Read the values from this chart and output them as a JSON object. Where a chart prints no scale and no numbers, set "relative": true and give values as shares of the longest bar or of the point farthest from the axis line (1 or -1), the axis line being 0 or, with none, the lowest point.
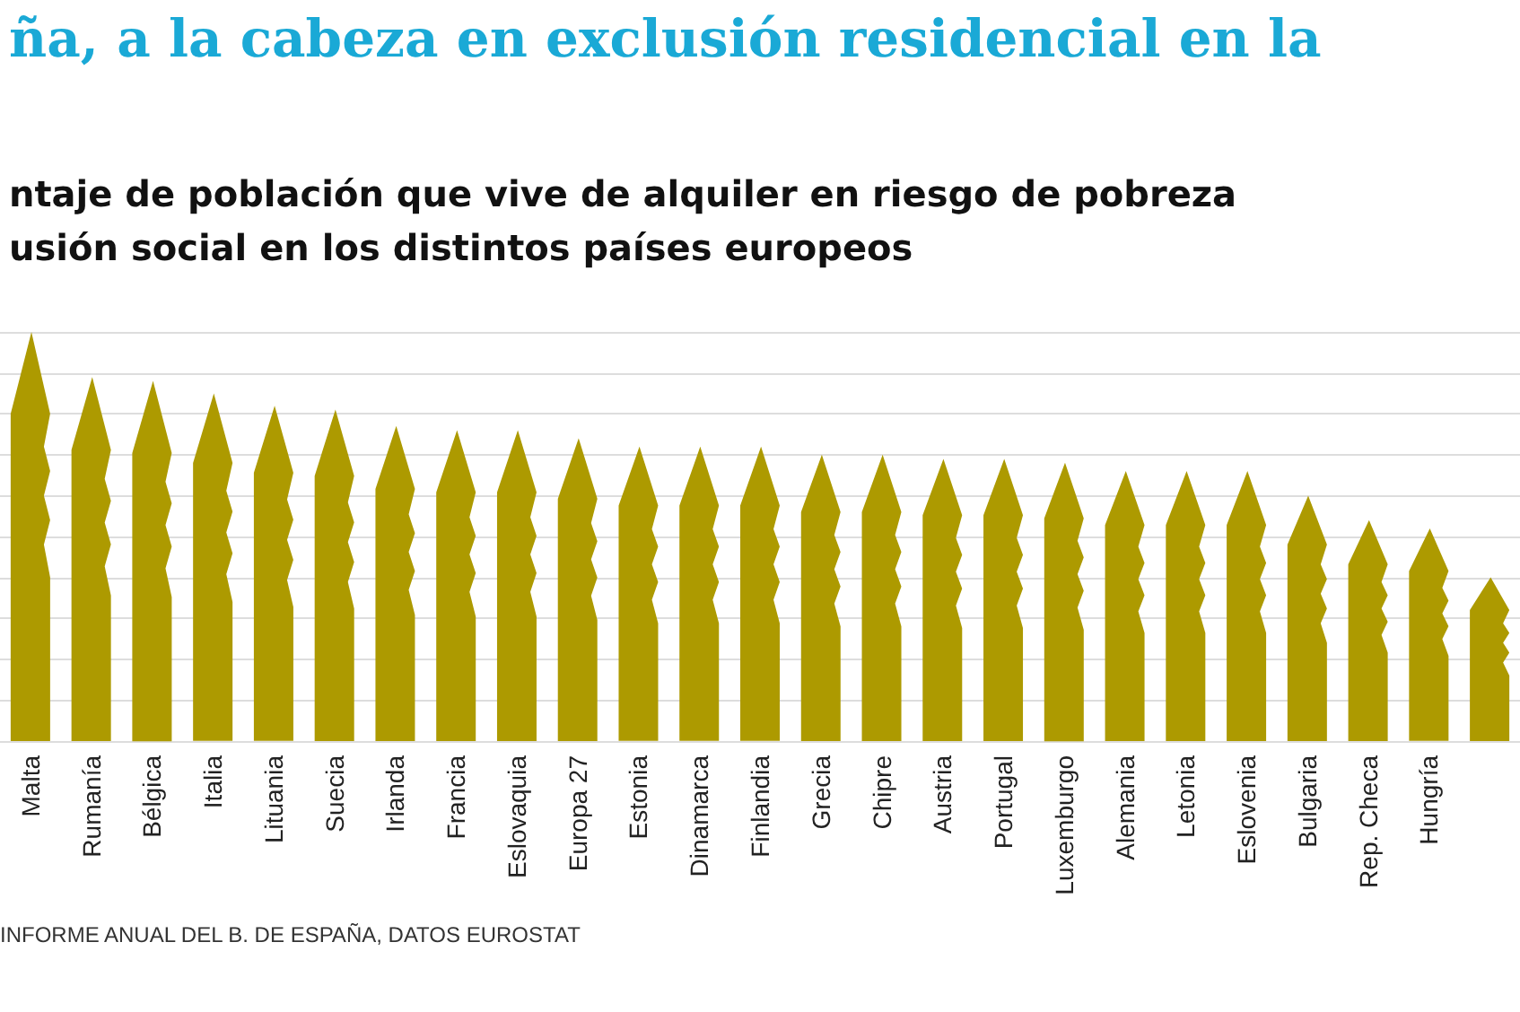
{
  "chart_data": {
    "type": "bar",
    "title": "ña, a la cabeza en exclusión residencial en la",
    "subtitle": "ntaje de población que vive de alquiler en riesgo de pobreza\nusión social en los distintos países europeos",
    "categories": [
      "Malta",
      "Rumanía",
      "Bélgica",
      "Italia",
      "Lituania",
      "Suecia",
      "Irlanda",
      "Francia",
      "Eslovaquia",
      "Europa 27",
      "Estonia",
      "Dinamarca",
      "Finlandia",
      "Grecia",
      "Chipre",
      "Austria",
      "Portugal",
      "Luxemburgo",
      "Alemania",
      "Letonia",
      "Eslovenia",
      "Bulgaria",
      "Rep. Checa",
      "Hungría",
      null
    ],
    "values": [
      1,
      0.89,
      0.88,
      0.85,
      0.82,
      0.81,
      0.77,
      0.76,
      0.76,
      0.74,
      0.72,
      0.72,
      0.72,
      0.7,
      0.7,
      0.69,
      0.69,
      0.68,
      0.66,
      0.66,
      0.66,
      0.6,
      0.54,
      0.52,
      0.4
    ],
    "color": "#ad9a00",
    "relative": true,
    "grid": "y",
    "annotations": [
      "INFORME ANUAL DEL B. DE ESPAÑA, DATOS EUROSTAT"
    ]
  }
}
